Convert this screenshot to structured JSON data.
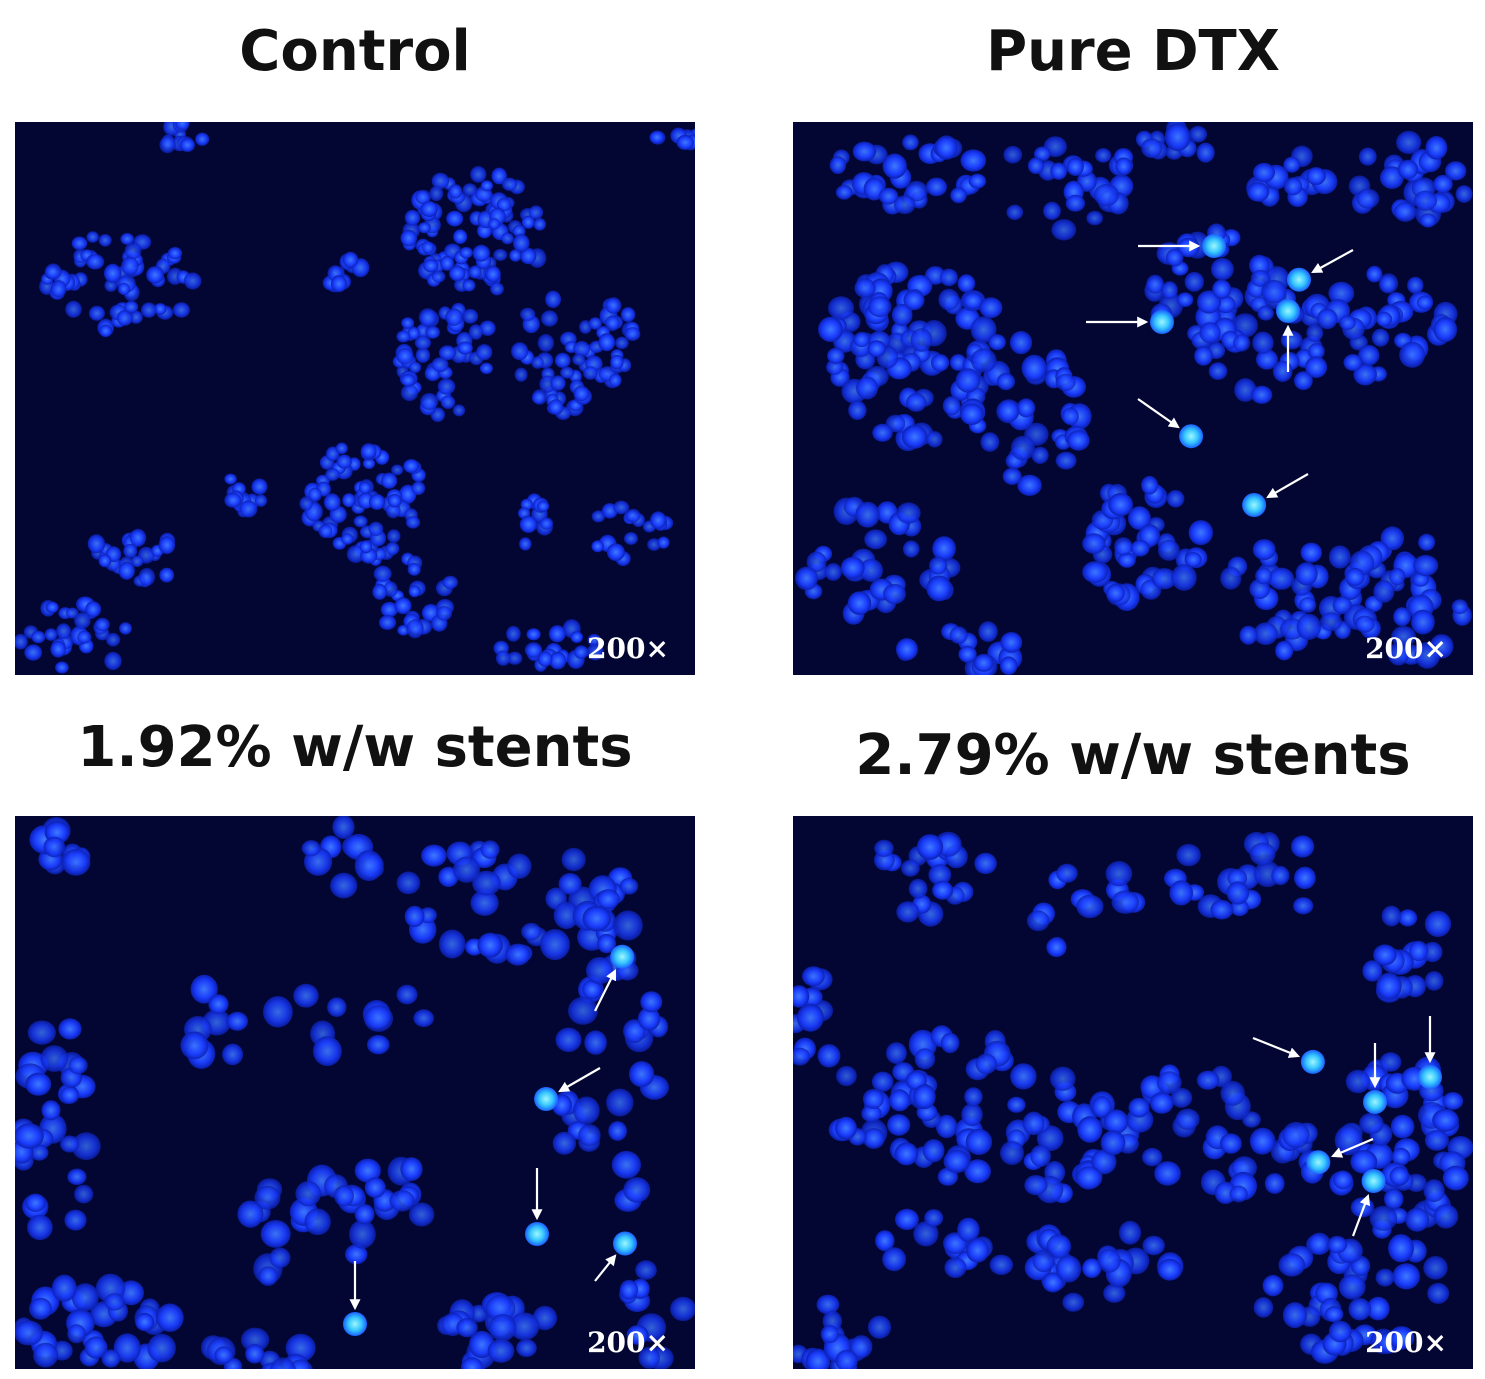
{
  "panels": [
    {
      "id": "control",
      "title": "Control",
      "magnification": "200×"
    },
    {
      "id": "pure-dtx",
      "title": "Pure DTX",
      "magnification": "200×"
    },
    {
      "id": "stent-192",
      "title": "1.92% w/w stents",
      "magnification": "200×"
    },
    {
      "id": "stent-279",
      "title": "2.79% w/w stents",
      "magnification": "200×"
    }
  ],
  "colors": {
    "background": "#030632",
    "nucleus": "#1a3cff",
    "nucleus_bright": "#4fd0ff",
    "arrow": "#ffffff"
  }
}
